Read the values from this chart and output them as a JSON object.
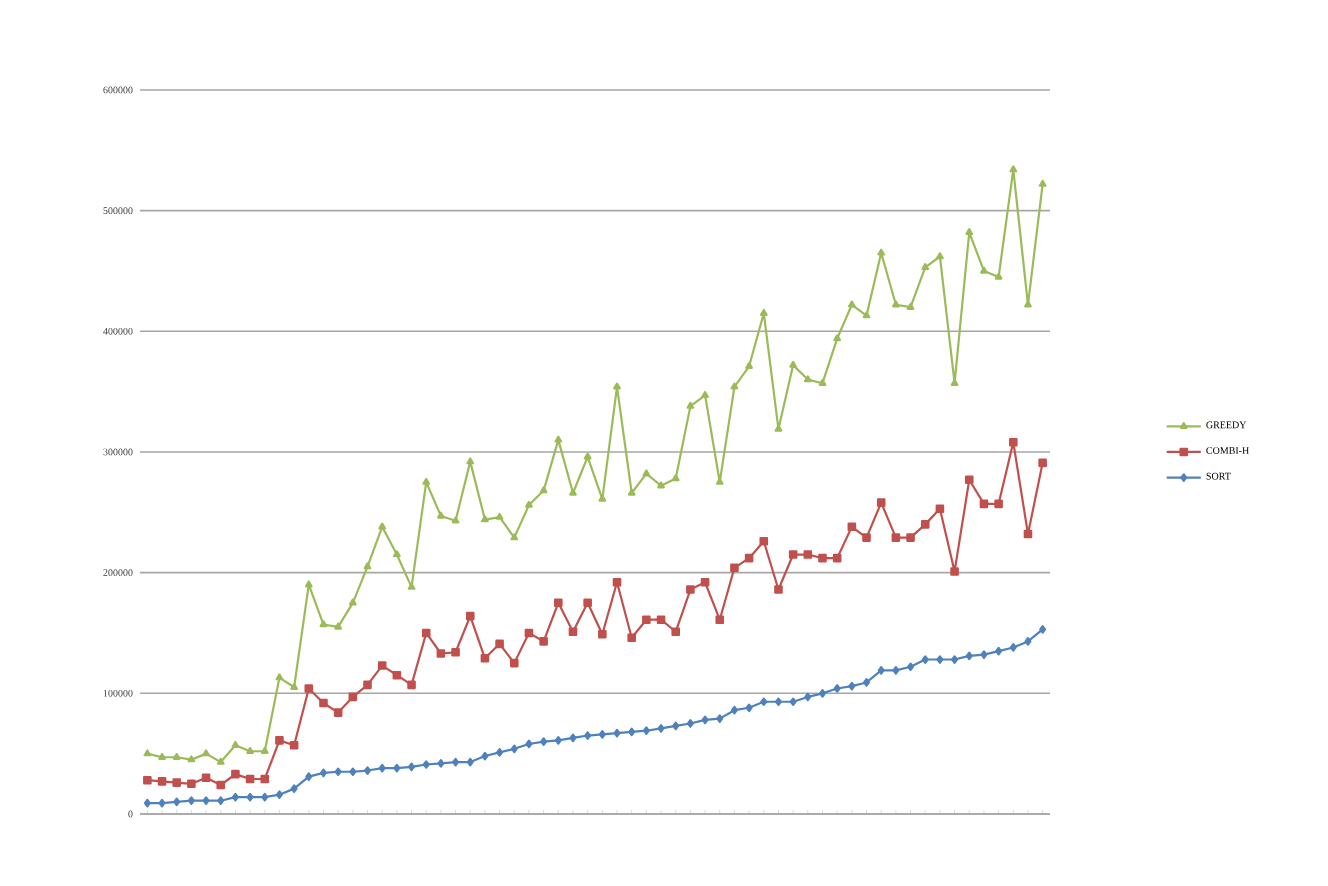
{
  "chart_data": {
    "type": "line",
    "categories": [
      null,
      null,
      null,
      null,
      null,
      null,
      null,
      null,
      null,
      null,
      null,
      null,
      null,
      null,
      null,
      null,
      null,
      null,
      null,
      null,
      null,
      null,
      null,
      null,
      null,
      null,
      null,
      null,
      null,
      null,
      null,
      null,
      null,
      null,
      null,
      null,
      null,
      null,
      null,
      null,
      null,
      null,
      null,
      null,
      null,
      null,
      null,
      null,
      null,
      null,
      null,
      null,
      null,
      null,
      null,
      null,
      null,
      null,
      null,
      null,
      null,
      null
    ],
    "series": [
      {
        "name": "GREEDY",
        "color": "#9bbb59",
        "marker": "triangle",
        "values": [
          50000,
          47000,
          47000,
          45000,
          50000,
          43000,
          57000,
          52000,
          52000,
          113000,
          105000,
          190000,
          157000,
          155000,
          175000,
          205000,
          238000,
          215000,
          188000,
          275000,
          247000,
          243000,
          292000,
          244000,
          246000,
          229000,
          256000,
          268000,
          310000,
          266000,
          296000,
          261000,
          354000,
          266000,
          282000,
          272000,
          278000,
          338000,
          347000,
          275000,
          354000,
          371000,
          415000,
          319000,
          372000,
          360000,
          357000,
          394000,
          422000,
          413000,
          465000,
          422000,
          420000,
          453000,
          462000,
          357000,
          482000,
          450000,
          445000,
          534000,
          422000,
          522000
        ]
      },
      {
        "name": "COMBI-H",
        "color": "#c0504d",
        "marker": "square",
        "values": [
          28000,
          27000,
          26000,
          25000,
          30000,
          24000,
          33000,
          29000,
          29000,
          61000,
          57000,
          104000,
          92000,
          84000,
          97000,
          107000,
          123000,
          115000,
          107000,
          150000,
          133000,
          134000,
          164000,
          129000,
          141000,
          125000,
          150000,
          143000,
          175000,
          151000,
          175000,
          149000,
          192000,
          146000,
          161000,
          161000,
          151000,
          186000,
          192000,
          161000,
          204000,
          212000,
          226000,
          186000,
          215000,
          215000,
          212000,
          212000,
          238000,
          229000,
          258000,
          229000,
          229000,
          240000,
          253000,
          201000,
          277000,
          257000,
          257000,
          308000,
          232000,
          291000
        ]
      },
      {
        "name": "SORT",
        "color": "#4f81bd",
        "marker": "diamond",
        "values": [
          9000,
          9000,
          10000,
          11000,
          11000,
          11000,
          14000,
          14000,
          14000,
          16000,
          21000,
          31000,
          34000,
          35000,
          35000,
          36000,
          38000,
          38000,
          39000,
          41000,
          42000,
          43000,
          43000,
          48000,
          51000,
          54000,
          58000,
          60000,
          61000,
          63000,
          65000,
          66000,
          67000,
          68000,
          69000,
          71000,
          73000,
          75000,
          78000,
          79000,
          86000,
          88000,
          93000,
          93000,
          93000,
          97000,
          100000,
          104000,
          106000,
          109000,
          119000,
          119000,
          122000,
          128000,
          128000,
          128000,
          131000,
          132000,
          135000,
          138000,
          143000,
          153000
        ]
      }
    ],
    "ylim": [
      0,
      600000
    ],
    "yticks": [
      0,
      100000,
      200000,
      300000,
      400000,
      500000,
      600000
    ],
    "grid": "y",
    "legend": "right",
    "tick_labels": "y",
    "line_style": "solid"
  }
}
